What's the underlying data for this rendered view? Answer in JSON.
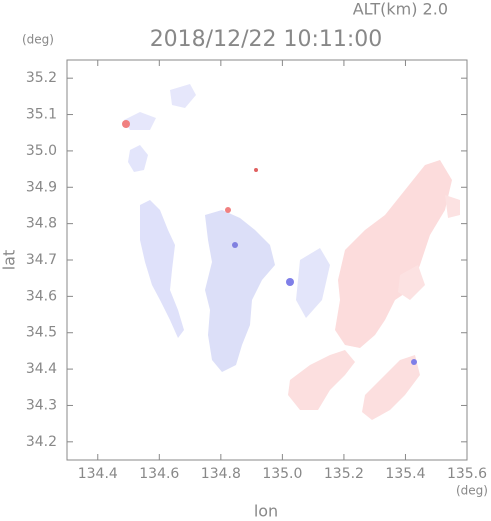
{
  "chart_data": {
    "type": "map",
    "title": "2018/12/22 10:11:00",
    "subtitle": "ALT(km) 2.0",
    "xlabel": "lon",
    "ylabel": "lat",
    "x_unit": "(deg)",
    "y_unit": "(deg)",
    "xlim": [
      134.3,
      135.6
    ],
    "ylim": [
      34.15,
      35.25
    ],
    "xticks": [
      134.4,
      134.6,
      134.8,
      {
        "value": 135,
        "label": "135.0"
      },
      135.2,
      135.4,
      135.6
    ],
    "yticks": [
      34.2,
      34.3,
      34.4,
      34.5,
      34.6,
      34.7,
      34.8,
      34.9,
      {
        "value": 35,
        "label": "35.0"
      },
      35.1,
      35.2
    ]
  }
}
